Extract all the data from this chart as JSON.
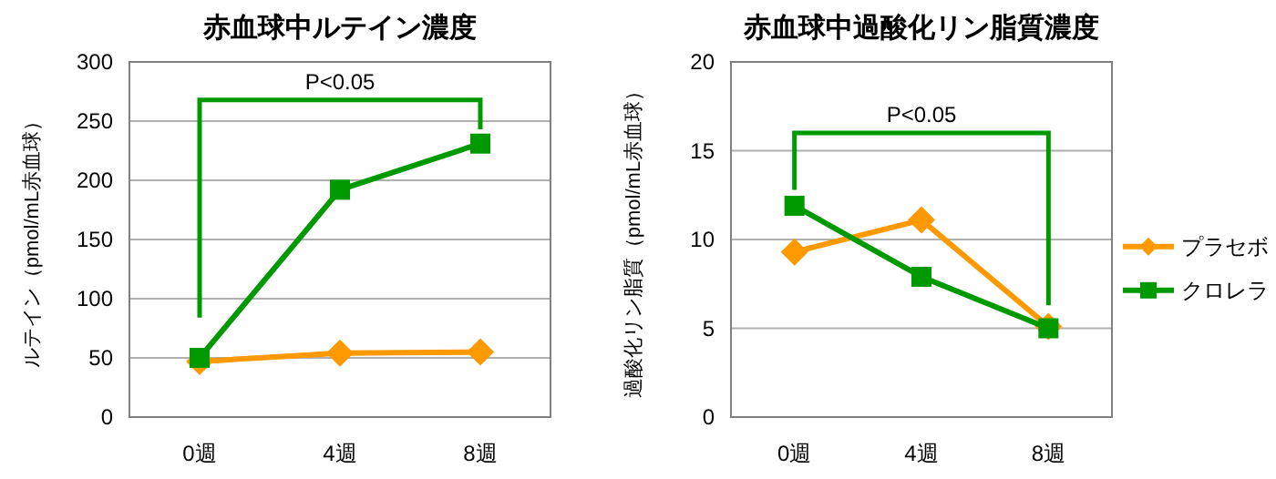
{
  "chart_data": [
    {
      "type": "line",
      "title": "赤血球中ルテイン濃度",
      "ylabel": "ルテイン（pmol/mL赤血球）",
      "categories": [
        "0週",
        "4週",
        "8週"
      ],
      "series": [
        {
          "color": "#ff9900",
          "marker": "diamond",
          "values": [
            47,
            54,
            55
          ]
        },
        {
          "color": "#009900",
          "marker": "square",
          "values": [
            50,
            192,
            231
          ]
        }
      ],
      "ylim": [
        0,
        300
      ],
      "yticks": [
        0,
        50,
        100,
        150,
        200,
        250,
        300
      ],
      "grid": "y",
      "annotations": [
        "P<0.05"
      ]
    },
    {
      "type": "line",
      "title": "赤血球中過酸化リン脂質濃度",
      "ylabel": "過酸化リン脂質（pmol/mL赤血球）",
      "categories": [
        "0週",
        "4週",
        "8週"
      ],
      "series": [
        {
          "name": "プラセボ",
          "color": "#ff9900",
          "marker": "diamond",
          "values": [
            9.3,
            11.1,
            5.1
          ]
        },
        {
          "name": "クロレラ",
          "color": "#009900",
          "marker": "square",
          "values": [
            11.9,
            7.9,
            5.0
          ]
        }
      ],
      "ylim": [
        0,
        20
      ],
      "yticks": [
        0,
        5,
        10,
        15,
        20
      ],
      "grid": "y",
      "legend": "right",
      "annotations": [
        "P<0.05"
      ]
    }
  ]
}
